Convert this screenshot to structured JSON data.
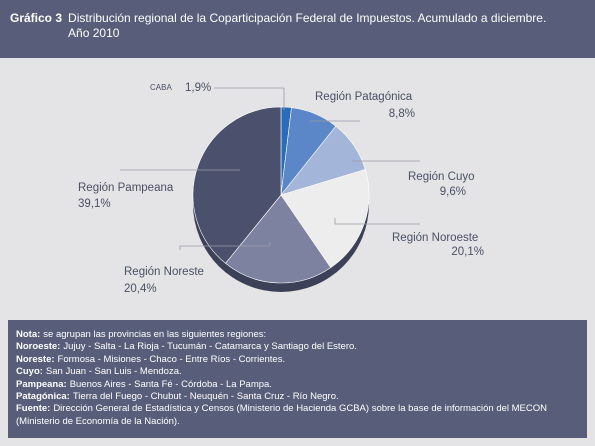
{
  "header": {
    "label": "Gráfico 3",
    "title": "Distribución regional de la Coparticipación Federal de Impuestos. Acumulado a diciembre. Año 2010"
  },
  "chart_data": {
    "type": "pie",
    "categories": [
      "CABA",
      "Región Patagónica",
      "Región Cuyo",
      "Región Noroeste",
      "Región Noreste",
      "Región Pampeana"
    ],
    "values": [
      1.9,
      8.8,
      9.6,
      20.1,
      20.4,
      39.1
    ],
    "value_labels": [
      "1,9%",
      "8,8%",
      "9,6%",
      "20,1%",
      "20,4%",
      "39,1%"
    ],
    "colors": [
      "#2a6cb8",
      "#5b87c8",
      "#a3b6da",
      "#ededee",
      "#7c829f",
      "#4b516d"
    ]
  },
  "notes": [
    {
      "term": "Nota:",
      "text": "se agrupan las provincias en las siguientes regiones:"
    },
    {
      "term": "Noroeste:",
      "text": "Jujuy - Salta - La Rioja - Tucumán - Catamarca y Santiago del Estero."
    },
    {
      "term": "Noreste:",
      "text": "Formosa - Misiones - Chaco - Entre Ríos - Corrientes."
    },
    {
      "term": "Cuyo:",
      "text": "San Juan - San Luis - Mendoza."
    },
    {
      "term": "Pampeana:",
      "text": "Buenos Aires - Santa Fé - Córdoba - La Pampa."
    },
    {
      "term": "Patagónica:",
      "text": "Tierra del Fuego - Chubut - Neuquén - Santa Cruz - Río Negro."
    },
    {
      "term": "Fuente:",
      "text": "Dirección General de Estadística y Censos (Ministerio de Hacienda GCBA) sobre la base de información del MECON (Ministerio de Economía de la Nación)."
    }
  ]
}
